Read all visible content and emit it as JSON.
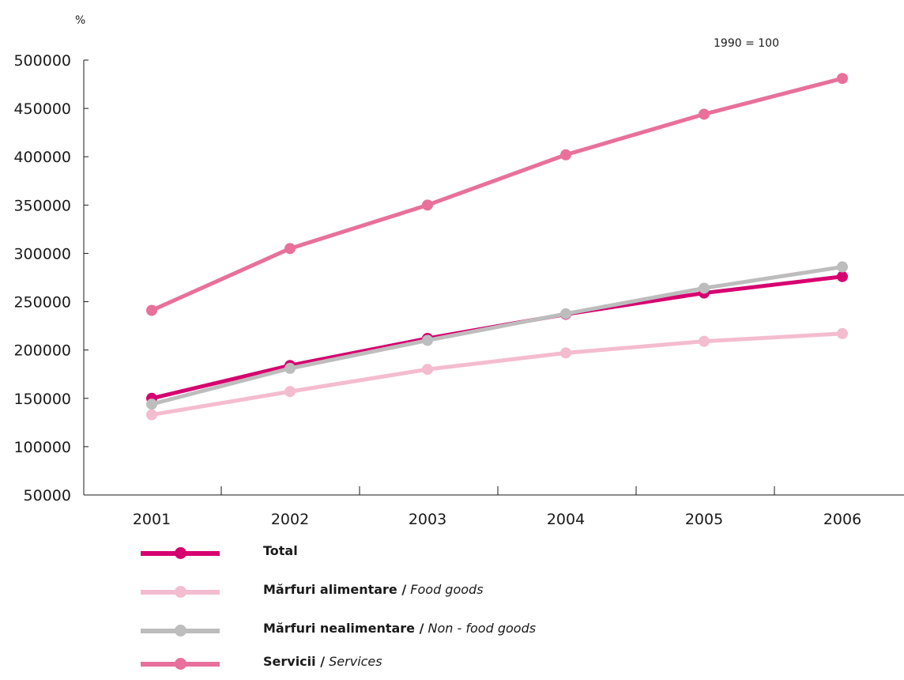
{
  "chart_data": {
    "type": "line",
    "unit": "%",
    "note": "1990 = 100",
    "categories": [
      "2001",
      "2002",
      "2003",
      "2004",
      "2005",
      "2006"
    ],
    "ylim": [
      50000,
      500000
    ],
    "yticks": [
      "50000",
      "100000",
      "150000",
      "200000",
      "250000",
      "300000",
      "350000",
      "400000",
      "450000",
      "500000"
    ],
    "series": [
      {
        "name": "Total",
        "name_en": "",
        "color": "#d6006f",
        "values": [
          150000,
          184000,
          212000,
          237000,
          259000,
          276000
        ]
      },
      {
        "name": "Mărfuri alimentare /",
        "name_en": "Food goods",
        "color": "#f4bccf",
        "values": [
          133000,
          157000,
          180000,
          197000,
          209000,
          217000
        ]
      },
      {
        "name": "Mărfuri nealimentare /",
        "name_en": "Non - food goods",
        "color": "#bdbdbd",
        "values": [
          144000,
          181000,
          210000,
          237500,
          264000,
          286000
        ]
      },
      {
        "name": "Servicii /",
        "name_en": "Services",
        "color": "#e8709a",
        "values": [
          241000,
          305000,
          350000,
          402000,
          444000,
          481000
        ]
      }
    ]
  }
}
